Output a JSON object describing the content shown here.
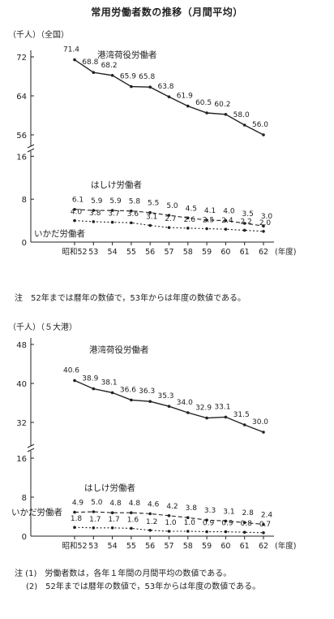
{
  "page_title": "常用労働者数の推移（月間平均）",
  "charts_meta": [
    {
      "unit_label": "（千人）（全国）"
    },
    {
      "unit_label": "（千人）（５大港）"
    }
  ],
  "notes_top": [
    "注　52年までは暦年の数値で，53年からは年度の数値である。"
  ],
  "notes_bottom": [
    "注 (1)　労働者数は，各年１年間の月間平均の数値である。",
    "(2)　52年までは暦年の数値で，53年からは年度の数値である。"
  ],
  "chart_data": [
    {
      "type": "line",
      "title": "",
      "region": "全国",
      "x": [
        "昭和52",
        "53",
        "54",
        "55",
        "56",
        "57",
        "58",
        "59",
        "60",
        "61",
        "62"
      ],
      "x_suffix": "(年度)",
      "yticks": [
        "0",
        "8",
        "16",
        "56",
        "64",
        "72"
      ],
      "broken_axis": true,
      "grid": false,
      "series": [
        {
          "name": "港湾荷役労働者",
          "style": "solid",
          "values": [
            71.4,
            68.8,
            68.2,
            65.9,
            65.8,
            63.8,
            61.9,
            60.5,
            60.2,
            58.0,
            56.0
          ]
        },
        {
          "name": "はしけ労働者",
          "style": "dash",
          "values": [
            6.1,
            5.9,
            5.9,
            5.8,
            5.5,
            5.0,
            4.5,
            4.1,
            4.0,
            3.5,
            3.0
          ]
        },
        {
          "name": "いかだ労働者",
          "style": "dot",
          "values": [
            4.0,
            3.8,
            3.7,
            3.6,
            3.1,
            2.7,
            2.6,
            2.5,
            2.4,
            2.2,
            2.0
          ]
        }
      ]
    },
    {
      "type": "line",
      "title": "",
      "region": "5大港",
      "x": [
        "昭和52",
        "53",
        "54",
        "55",
        "56",
        "57",
        "58",
        "59",
        "60",
        "61",
        "62"
      ],
      "x_suffix": "(年度)",
      "yticks": [
        "0",
        "8",
        "16",
        "32",
        "40",
        "48"
      ],
      "broken_axis": true,
      "grid": false,
      "series": [
        {
          "name": "港湾荷役労働者",
          "style": "solid",
          "values": [
            40.6,
            38.9,
            38.1,
            36.6,
            36.3,
            35.3,
            34.0,
            32.9,
            33.1,
            31.5,
            30.0
          ]
        },
        {
          "name": "はしけ労働者",
          "style": "dash",
          "values": [
            4.9,
            5.0,
            4.8,
            4.8,
            4.6,
            4.2,
            3.8,
            3.3,
            3.1,
            2.8,
            2.4
          ]
        },
        {
          "name": "いかだ労働者",
          "style": "dot",
          "values": [
            1.8,
            1.7,
            1.7,
            1.6,
            1.2,
            1.0,
            1.0,
            0.9,
            0.9,
            0.8,
            0.7
          ]
        }
      ]
    }
  ]
}
